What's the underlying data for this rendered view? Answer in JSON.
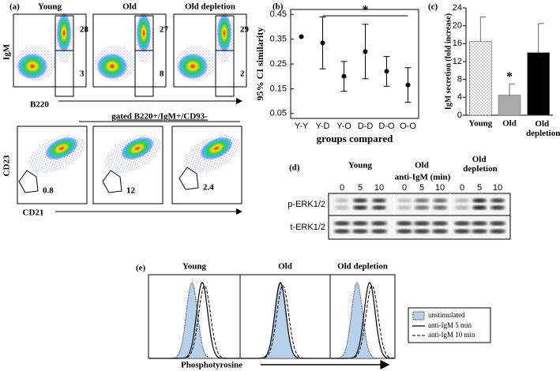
{
  "panel_a": {
    "label": "(a)",
    "columns": [
      "Young",
      "Old",
      "Old depletion"
    ],
    "top": {
      "y_label": "IgM",
      "x_label": "B220",
      "gates": [
        [
          "28",
          "3"
        ],
        [
          "27",
          "8"
        ],
        [
          "29",
          "2"
        ]
      ]
    },
    "gating_label": "gated B220+/IgM+/CD93-",
    "bottom": {
      "y_label": "CD23",
      "x_label": "CD21",
      "gates": [
        "0.8",
        "12",
        "2.4"
      ]
    }
  },
  "chart_data": [
    {
      "type": "errorbar",
      "label": "(b)",
      "y_label": "95% CI similarity",
      "x_label": "groups compared",
      "categories": [
        "Y-Y",
        "Y-D",
        "Y-O",
        "D-D",
        "D-O",
        "O-O"
      ],
      "values": [
        0.36,
        0.335,
        0.2,
        0.3,
        0.22,
        0.165
      ],
      "errors": [
        null,
        0.105,
        0.06,
        0.11,
        0.06,
        0.07
      ],
      "color": "#000000",
      "ylim": [
        0.03,
        0.47
      ],
      "yticks": [
        0.05,
        0.15,
        0.25,
        0.35,
        0.45
      ],
      "significance": "*"
    },
    {
      "type": "bar",
      "label": "(c)",
      "y_label": "IgM secretion (fold increase)",
      "categories": [
        "Young",
        "Old",
        "Old depletion"
      ],
      "values": [
        16.5,
        4.5,
        14
      ],
      "errors": [
        5.5,
        2.5,
        6.5
      ],
      "colors": [
        "dots",
        "#aaaaaa",
        "#000000"
      ],
      "ylim": [
        0,
        24
      ],
      "yticks": [
        0,
        4,
        8,
        12,
        16,
        20,
        24
      ],
      "significance": "*"
    }
  ],
  "panel_d": {
    "label": "(d)",
    "groups": [
      "Young",
      "Old",
      "Old depletion"
    ],
    "treatment": "anti-IgM (min)",
    "lanes": [
      "0",
      "5",
      "10"
    ],
    "rows": [
      "p-ERK1/2",
      "t-ERK1/2"
    ]
  },
  "panel_e": {
    "label": "(e)",
    "groups": [
      "Young",
      "Old",
      "Old depletion"
    ],
    "x_label": "Phosphotyrosine",
    "legend": [
      "unstimulated",
      "anti-IgM 5 min",
      "anti-IgM 10 min"
    ]
  }
}
